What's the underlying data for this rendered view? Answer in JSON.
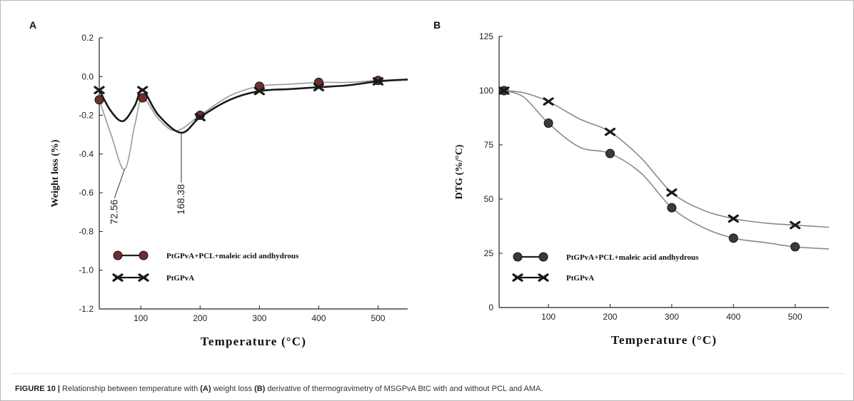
{
  "figure": {
    "caption_label": "FIGURE 10 |",
    "caption_pre": " Relationship between temperature with ",
    "caption_a_tag": "(A)",
    "caption_a_text": " weight loss ",
    "caption_b_tag": "(B)",
    "caption_b_text": " derivative of thermogravimetry of MSGPvA BtC with and without PCL and AMA."
  },
  "chart_data": [
    {
      "panel": "A",
      "type": "line",
      "xlabel": "Temperature (°C)",
      "ylabel": "Weight loss (%)",
      "xlim": [
        30,
        550
      ],
      "ylim": [
        -1.2,
        0.2
      ],
      "x_ticks": [
        100,
        200,
        300,
        400,
        500
      ],
      "x_tick_labels": [
        "100",
        "200",
        "300",
        "400",
        "500"
      ],
      "y_ticks": [
        0.2,
        0.0,
        -0.2,
        -0.4,
        -0.6,
        -0.8,
        -1.0,
        -1.2
      ],
      "y_tick_labels": [
        "0.2",
        "0.0",
        "-0.2",
        "-0.4",
        "-0.6",
        "-0.8",
        "-1.0",
        "-1.2"
      ],
      "legend_position": "bottom-left",
      "annotations": [
        {
          "text": "72.56",
          "x": 72.56,
          "y": -0.48
        },
        {
          "text": "168.38",
          "x": 168.38,
          "y": -0.29
        }
      ],
      "series": [
        {
          "name": "PtGPvA+PCL+maleic acid andhydrous",
          "marker": "circle",
          "color": "#6e2f2f",
          "line_color": "#9a9a9a",
          "x": [
            30,
            50,
            72.56,
            90,
            103,
            130,
            160,
            200,
            250,
            300,
            350,
            400,
            450,
            500,
            550
          ],
          "y": [
            -0.12,
            -0.3,
            -0.48,
            -0.25,
            -0.11,
            -0.22,
            -0.28,
            -0.2,
            -0.1,
            -0.05,
            -0.04,
            -0.03,
            -0.03,
            -0.02,
            -0.015
          ],
          "marker_x": [
            30,
            103,
            200,
            300,
            400,
            500
          ],
          "marker_y": [
            -0.12,
            -0.11,
            -0.2,
            -0.05,
            -0.03,
            -0.02
          ]
        },
        {
          "name": "PtGPvA",
          "marker": "cross",
          "color": "#1a1a1a",
          "line_color": "#1a1a1a",
          "x": [
            30,
            50,
            70,
            90,
            103,
            130,
            168.38,
            200,
            250,
            300,
            350,
            400,
            450,
            500,
            550
          ],
          "y": [
            -0.07,
            -0.18,
            -0.23,
            -0.15,
            -0.07,
            -0.2,
            -0.29,
            -0.21,
            -0.12,
            -0.075,
            -0.065,
            -0.055,
            -0.045,
            -0.025,
            -0.015
          ],
          "marker_x": [
            30,
            103,
            200,
            300,
            400,
            500
          ],
          "marker_y": [
            -0.07,
            -0.07,
            -0.21,
            -0.075,
            -0.055,
            -0.025
          ]
        }
      ]
    },
    {
      "panel": "B",
      "type": "line",
      "xlabel": "Temperature (°C)",
      "ylabel": "DTG (%/°C)",
      "xlim": [
        20,
        555
      ],
      "ylim": [
        0,
        125
      ],
      "x_ticks": [
        100,
        200,
        300,
        400,
        500
      ],
      "x_tick_labels": [
        "100",
        "200",
        "300",
        "400",
        "500"
      ],
      "y_ticks": [
        0,
        25,
        50,
        75,
        100,
        125
      ],
      "y_tick_labels": [
        "0",
        "25",
        "50",
        "75",
        "100",
        "125"
      ],
      "legend_position": "bottom-left",
      "series": [
        {
          "name": "PtGPvA+PCL+maleic acid andhydrous",
          "marker": "circle",
          "color": "#3a3a3a",
          "line_color": "#8a8a8a",
          "x": [
            28,
            60,
            100,
            150,
            200,
            250,
            300,
            350,
            400,
            450,
            500,
            555
          ],
          "y": [
            100,
            97,
            85,
            74,
            71,
            62,
            46,
            37,
            32,
            30,
            28,
            27
          ],
          "marker_x": [
            28,
            100,
            200,
            300,
            400,
            500
          ],
          "marker_y": [
            100,
            85,
            71,
            46,
            32,
            28
          ]
        },
        {
          "name": "PtGPvA",
          "marker": "cross",
          "color": "#1a1a1a",
          "line_color": "#8a8a8a",
          "x": [
            28,
            60,
            100,
            150,
            200,
            250,
            300,
            350,
            400,
            450,
            500,
            555
          ],
          "y": [
            100,
            99,
            95,
            87,
            81,
            69,
            53,
            45,
            41,
            39,
            38,
            37
          ],
          "marker_x": [
            28,
            100,
            200,
            300,
            400,
            500
          ],
          "marker_y": [
            100,
            95,
            81,
            53,
            41,
            38
          ]
        }
      ]
    }
  ]
}
